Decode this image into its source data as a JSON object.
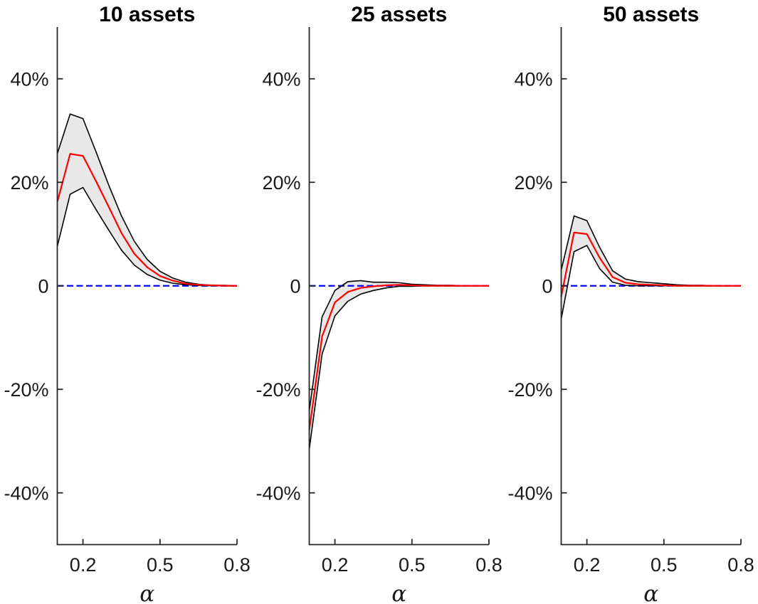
{
  "figure": {
    "background_color": "#ffffff",
    "style": {
      "mean_line_color": "#ff0000",
      "band_fill_color": "#e8e8e8",
      "band_edge_color": "#000000",
      "zero_line_color": "#0000ff",
      "axis_color": "#262626",
      "tick_label_color": "#1a1a1a",
      "title_color": "#000000"
    }
  },
  "chart_data": [
    {
      "type": "area",
      "title": "10 assets",
      "xlabel": "α",
      "ylabel": "",
      "xlim": [
        0.1,
        0.8
      ],
      "ylim": [
        -50,
        50
      ],
      "grid": false,
      "legend": "none",
      "xticks": [
        0.2,
        0.5,
        0.8
      ],
      "xtick_labels": [
        "0.2",
        "0.5",
        "0.8"
      ],
      "yticks": [
        40,
        20,
        0,
        -20,
        -40
      ],
      "ytick_labels": [
        "40%",
        "20%",
        "0",
        "-20%",
        "-40%"
      ],
      "zero_line": 0,
      "x": [
        0.1,
        0.15,
        0.2,
        0.25,
        0.3,
        0.35,
        0.4,
        0.45,
        0.5,
        0.55,
        0.6,
        0.65,
        0.7,
        0.75,
        0.8
      ],
      "series": [
        {
          "name": "upper band edge",
          "values": [
            25.5,
            33.2,
            32.3,
            26.0,
            19.5,
            13.5,
            8.6,
            5.1,
            2.8,
            1.5,
            0.7,
            0.3,
            0.1,
            0.1,
            0.0
          ]
        },
        {
          "name": "mean",
          "values": [
            16.2,
            25.5,
            25.1,
            20.3,
            15.3,
            10.2,
            6.2,
            3.6,
            1.9,
            1.0,
            0.4,
            0.2,
            0.1,
            0.0,
            0.0
          ]
        },
        {
          "name": "lower band edge",
          "values": [
            7.6,
            17.7,
            19.0,
            14.8,
            10.8,
            6.9,
            4.0,
            2.2,
            1.1,
            0.5,
            0.2,
            0.1,
            0.0,
            0.0,
            0.0
          ]
        }
      ]
    },
    {
      "type": "area",
      "title": "25 assets",
      "xlabel": "α",
      "ylabel": "",
      "xlim": [
        0.1,
        0.8
      ],
      "ylim": [
        -50,
        50
      ],
      "grid": false,
      "legend": "none",
      "xticks": [
        0.2,
        0.5,
        0.8
      ],
      "xtick_labels": [
        "0.2",
        "0.5",
        "0.8"
      ],
      "yticks": [
        40,
        20,
        0,
        -20,
        -40
      ],
      "ytick_labels": [
        "40%",
        "20%",
        "0",
        "-20%",
        "-40%"
      ],
      "zero_line": 0,
      "x": [
        0.1,
        0.15,
        0.2,
        0.25,
        0.3,
        0.35,
        0.4,
        0.45,
        0.5,
        0.55,
        0.6,
        0.65,
        0.7,
        0.75,
        0.8
      ],
      "series": [
        {
          "name": "upper band edge",
          "values": [
            -24.2,
            -6.0,
            -0.9,
            0.8,
            1.0,
            0.7,
            0.7,
            0.6,
            0.3,
            0.2,
            0.1,
            0.1,
            0.0,
            0.0,
            0.0
          ]
        },
        {
          "name": "mean",
          "values": [
            -27.9,
            -9.8,
            -3.2,
            -1.2,
            -0.4,
            -0.1,
            0.1,
            0.2,
            0.1,
            0.0,
            0.0,
            0.0,
            0.0,
            0.0,
            0.0
          ]
        },
        {
          "name": "lower band edge",
          "values": [
            -31.6,
            -13.2,
            -5.8,
            -3.0,
            -1.6,
            -0.9,
            -0.4,
            -0.1,
            -0.1,
            0.0,
            0.0,
            0.0,
            0.0,
            0.0,
            0.0
          ]
        }
      ]
    },
    {
      "type": "area",
      "title": "50 assets",
      "xlabel": "α",
      "ylabel": "",
      "xlim": [
        0.1,
        0.8
      ],
      "ylim": [
        -50,
        50
      ],
      "grid": false,
      "legend": "none",
      "xticks": [
        0.2,
        0.5,
        0.8
      ],
      "xtick_labels": [
        "0.2",
        "0.5",
        "0.8"
      ],
      "yticks": [
        40,
        20,
        0,
        -20,
        -40
      ],
      "ytick_labels": [
        "40%",
        "20%",
        "0",
        "-20%",
        "-40%"
      ],
      "zero_line": 0,
      "x": [
        0.1,
        0.15,
        0.2,
        0.25,
        0.3,
        0.35,
        0.4,
        0.45,
        0.5,
        0.55,
        0.6,
        0.65,
        0.7,
        0.75,
        0.8
      ],
      "series": [
        {
          "name": "upper band edge",
          "values": [
            3.0,
            13.5,
            12.6,
            7.4,
            2.9,
            1.3,
            0.8,
            0.6,
            0.4,
            0.2,
            0.1,
            0.1,
            0.0,
            0.0,
            0.0
          ]
        },
        {
          "name": "mean",
          "values": [
            -2.1,
            10.3,
            10.0,
            5.4,
            1.7,
            0.6,
            0.3,
            0.2,
            0.1,
            0.0,
            0.0,
            0.0,
            0.0,
            0.0,
            0.0
          ]
        },
        {
          "name": "lower band edge",
          "values": [
            -6.4,
            6.6,
            7.8,
            3.3,
            0.7,
            0.1,
            0.0,
            0.0,
            0.0,
            0.0,
            0.0,
            0.0,
            0.0,
            0.0,
            0.0
          ]
        }
      ]
    }
  ]
}
